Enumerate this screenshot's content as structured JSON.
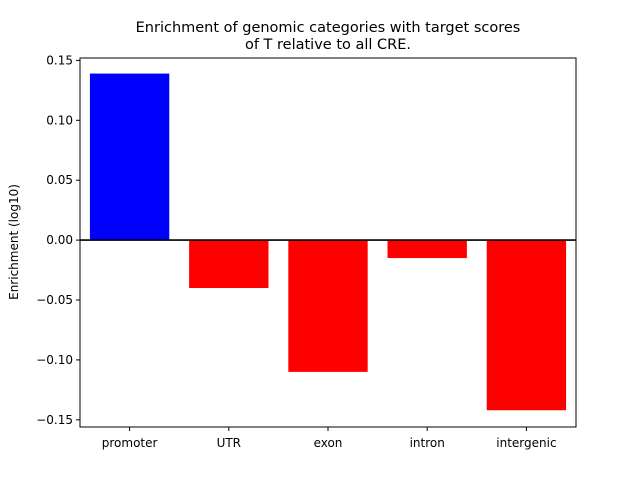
{
  "chart_data": {
    "type": "bar",
    "title": [
      "Enrichment of genomic categories with target scores",
      "of T relative to all CRE."
    ],
    "xlabel": "",
    "ylabel": "Enrichment (log10)",
    "categories": [
      "promoter",
      "UTR",
      "exon",
      "intron",
      "intergenic"
    ],
    "values": [
      0.139,
      -0.04,
      -0.11,
      -0.015,
      -0.142
    ],
    "ylim": [
      -0.156,
      0.152
    ],
    "yticks": [
      0.15,
      0.1,
      0.05,
      0.0,
      -0.05,
      -0.1,
      -0.15
    ],
    "ytick_labels": [
      "0.15",
      "0.10",
      "0.05",
      "0.00",
      "−0.05",
      "−0.10",
      "−0.15"
    ],
    "colors": {
      "positive": "#0000ff",
      "negative": "#ff0000",
      "zero_line": "#000000"
    },
    "grid": false,
    "legend": "none"
  }
}
